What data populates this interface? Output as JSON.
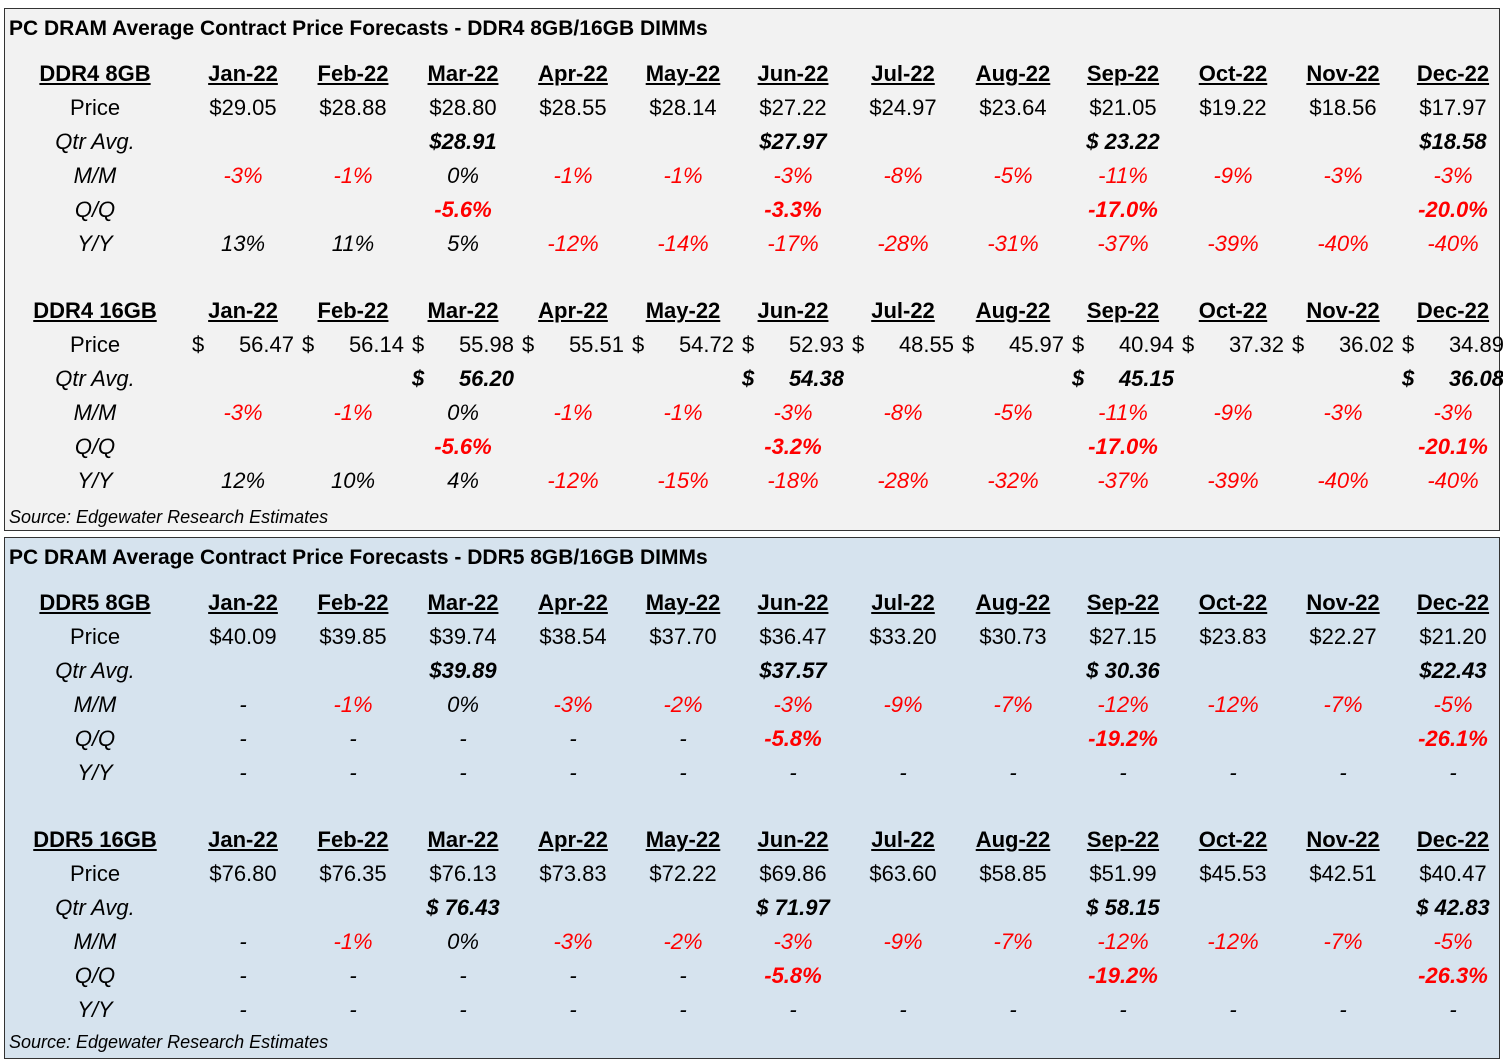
{
  "months": [
    "Jan-22",
    "Feb-22",
    "Mar-22",
    "Apr-22",
    "May-22",
    "Jun-22",
    "Jul-22",
    "Aug-22",
    "Sep-22",
    "Oct-22",
    "Nov-22",
    "Dec-22"
  ],
  "row_labels": {
    "price": "Price",
    "qtr": "Qtr Avg.",
    "mm": "M/M",
    "qq": "Q/Q",
    "yy": "Y/Y"
  },
  "panels": [
    {
      "title": "PC DRAM Average Contract Price Forecasts - DDR4 8GB/16GB DIMMs",
      "source": "Source: Edgewater Research Estimates",
      "tables": [
        {
          "name": "DDR4 8GB",
          "price_style": "plain",
          "price": [
            "$29.05",
            "$28.88",
            "$28.80",
            "$28.55",
            "$28.14",
            "$27.22",
            "$24.97",
            "$23.64",
            "$21.05",
            "$19.22",
            "$18.56",
            "$17.97"
          ],
          "qtr": {
            "2": "$28.91",
            "5": "$27.97",
            "8": "$ 23.22",
            "11": "$18.58"
          },
          "mm": [
            "-3%",
            "-1%",
            "0%",
            "-1%",
            "-1%",
            "-3%",
            "-8%",
            "-5%",
            "-11%",
            "-9%",
            "-3%",
            "-3%"
          ],
          "qq": {
            "2": "-5.6%",
            "5": "-3.3%",
            "8": "-17.0%",
            "11": "-20.0%"
          },
          "yy": [
            "13%",
            "11%",
            "5%",
            "-12%",
            "-14%",
            "-17%",
            "-28%",
            "-31%",
            "-37%",
            "-39%",
            "-40%",
            "-40%"
          ]
        },
        {
          "name": "DDR4 16GB",
          "price_style": "split",
          "price": [
            "56.47",
            "56.14",
            "55.98",
            "55.51",
            "54.72",
            "52.93",
            "48.55",
            "45.97",
            "40.94",
            "37.32",
            "36.02",
            "34.89"
          ],
          "qtr": {
            "2": "56.20",
            "5": "54.38",
            "8": "45.15",
            "11": "36.08"
          },
          "mm": [
            "-3%",
            "-1%",
            "0%",
            "-1%",
            "-1%",
            "-3%",
            "-8%",
            "-5%",
            "-11%",
            "-9%",
            "-3%",
            "-3%"
          ],
          "qq": {
            "2": "-5.6%",
            "5": "-3.2%",
            "8": "-17.0%",
            "11": "-20.1%"
          },
          "yy": [
            "12%",
            "10%",
            "4%",
            "-12%",
            "-15%",
            "-18%",
            "-28%",
            "-32%",
            "-37%",
            "-39%",
            "-40%",
            "-40%"
          ]
        }
      ]
    },
    {
      "title": "PC DRAM Average Contract Price Forecasts - DDR5 8GB/16GB DIMMs",
      "source": "Source: Edgewater Research Estimates",
      "tables": [
        {
          "name": "DDR5 8GB",
          "price_style": "plain",
          "price": [
            "$40.09",
            "$39.85",
            "$39.74",
            "$38.54",
            "$37.70",
            "$36.47",
            "$33.20",
            "$30.73",
            "$27.15",
            "$23.83",
            "$22.27",
            "$21.20"
          ],
          "qtr": {
            "2": "$39.89",
            "5": "$37.57",
            "8": "$ 30.36",
            "11": "$22.43"
          },
          "mm": [
            "-",
            "-1%",
            "0%",
            "-3%",
            "-2%",
            "-3%",
            "-9%",
            "-7%",
            "-12%",
            "-12%",
            "-7%",
            "-5%"
          ],
          "qq": [
            "-",
            "-",
            "-",
            "-",
            "-",
            "-5.8%",
            "",
            "",
            "-19.2%",
            "",
            "",
            "-26.1%"
          ],
          "yy": [
            "-",
            "-",
            "-",
            "-",
            "-",
            "-",
            "-",
            "-",
            "-",
            "-",
            "-",
            "-"
          ]
        },
        {
          "name": "DDR5 16GB",
          "price_style": "plain",
          "price": [
            "$76.80",
            "$76.35",
            "$76.13",
            "$73.83",
            "$72.22",
            "$69.86",
            "$63.60",
            "$58.85",
            "$51.99",
            "$45.53",
            "$42.51",
            "$40.47"
          ],
          "qtr": {
            "2": "$ 76.43",
            "5": "$ 71.97",
            "8": "$ 58.15",
            "11": "$ 42.83"
          },
          "mm": [
            "-",
            "-1%",
            "0%",
            "-3%",
            "-2%",
            "-3%",
            "-9%",
            "-7%",
            "-12%",
            "-12%",
            "-7%",
            "-5%"
          ],
          "qq": [
            "-",
            "-",
            "-",
            "-",
            "-",
            "-5.8%",
            "",
            "",
            "-19.2%",
            "",
            "",
            "-26.3%"
          ],
          "yy": [
            "-",
            "-",
            "-",
            "-",
            "-",
            "-",
            "-",
            "-",
            "-",
            "-",
            "-",
            "-"
          ]
        }
      ]
    }
  ]
}
